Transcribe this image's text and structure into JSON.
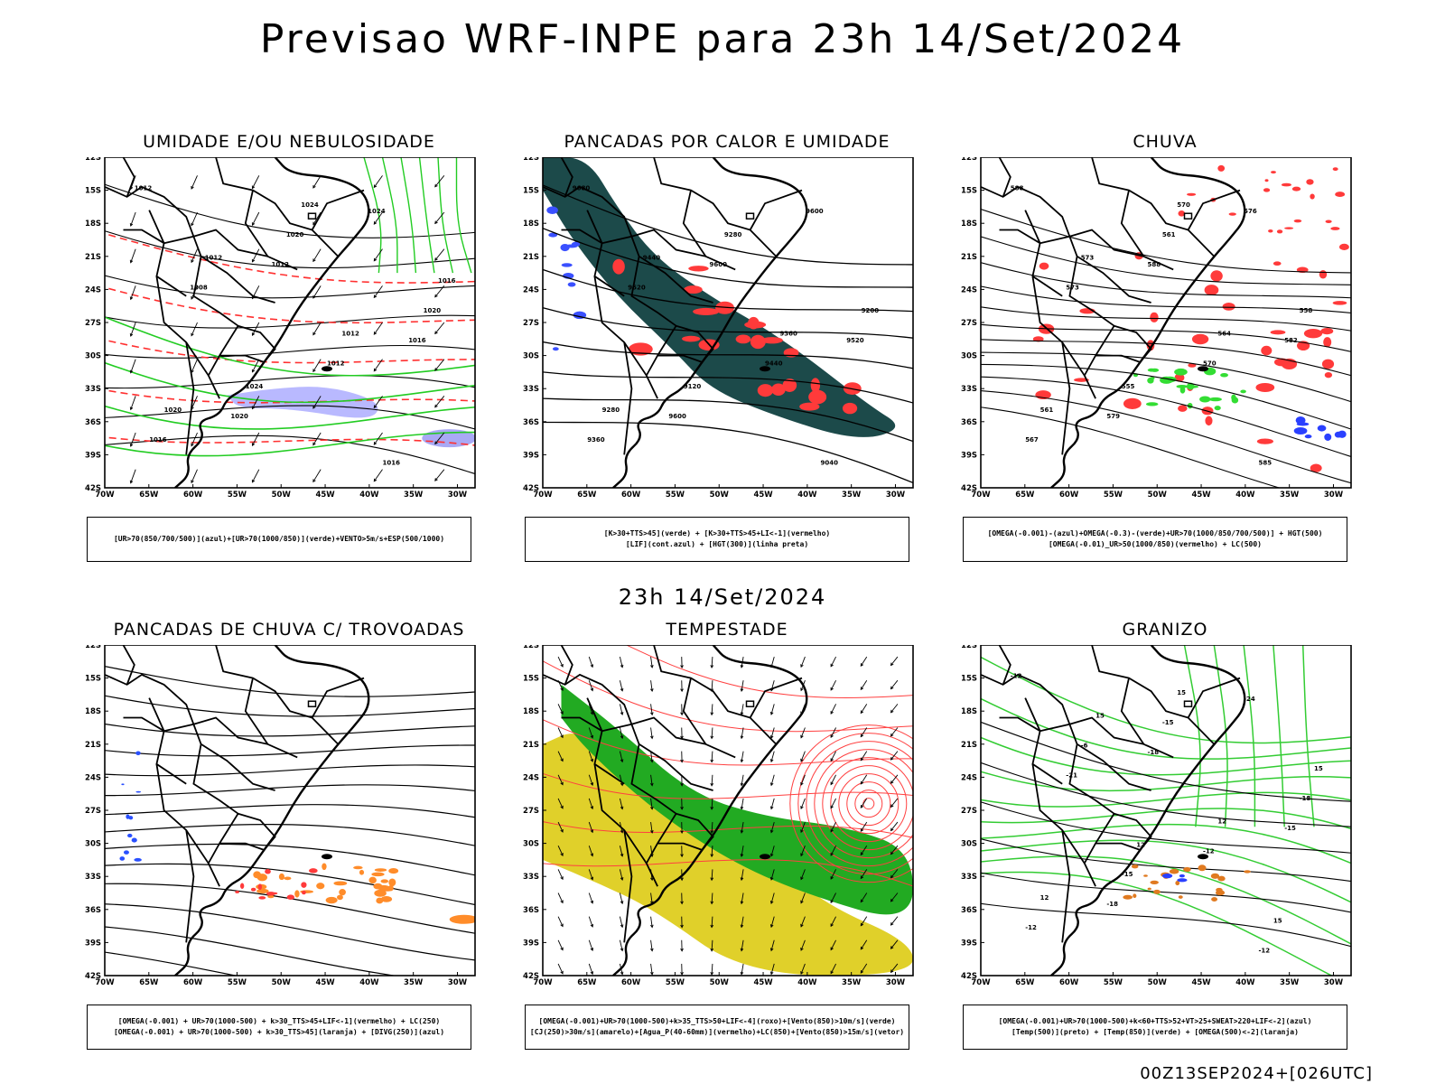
{
  "title": "Previsao WRF-INPE  para 23h 14/Set/2024",
  "mid_title": "23h 14/Set/2024",
  "footer": "00Z13SEP2024+[026UTC]",
  "lat_labels": [
    "12S",
    "15S",
    "18S",
    "21S",
    "24S",
    "27S",
    "30S",
    "33S",
    "36S",
    "39S",
    "42S"
  ],
  "lon_labels": [
    "70W",
    "65W",
    "60W",
    "55W",
    "50W",
    "45W",
    "40W",
    "35W",
    "30W"
  ],
  "panels": [
    {
      "id": "umidade",
      "title": "UMIDADE E/OU NEBULOSIDADE",
      "legend": [
        "[UR>70(850/700/500)](azul)+[UR>70(1000/850)](verde)+VENTO>5m/s+ESP(500/1000)"
      ],
      "contour_labels": [
        "1012",
        "1012",
        "1016",
        "1020",
        "1024",
        "1008",
        "1012",
        "1016",
        "1020",
        "1020",
        "1024",
        "1016",
        "1012",
        "1012",
        "1020",
        "1024",
        "1016"
      ]
    },
    {
      "id": "pancadas-calor",
      "title": "PANCADAS POR CALOR E UMIDADE",
      "legend": [
        "[K>30+TTS>45](verde) + [K>30+TTS>45+LI<-1](vermelho)",
        "[LIF](cont.azul) + [HGT(300)](linha preta)"
      ],
      "contour_labels": [
        "9680",
        "9600",
        "9520",
        "9600",
        "9600",
        "9520",
        "9440",
        "9360",
        "9280",
        "9200",
        "9120",
        "9040",
        "9440",
        "9360",
        "9280"
      ]
    },
    {
      "id": "chuva",
      "title": "CHUVA",
      "legend": [
        "[OMEGA(-0.001)-(azul)+OMEGA(-0.3)-(verde)+UR>70(1000/850/700/500)] + HGT(500)",
        "[OMEGA(-0.01)_UR>50(1000/850)(vermelho) + LC(500)"
      ],
      "contour_labels": [
        "588",
        "588",
        "582",
        "579",
        "576",
        "573",
        "570",
        "567",
        "561",
        "558",
        "555",
        "585",
        "573",
        "564",
        "561",
        "570"
      ]
    },
    {
      "id": "trovoadas",
      "title": "PANCADAS DE CHUVA C/ TROVOADAS",
      "legend": [
        "[OMEGA(-0.001) + UR>70(1000-500) + k>30_TTS>45+LIF<-1](vermelho) + LC(250)",
        "[OMEGA(-0.001) + UR>70(1000-500) + k>30_TTS>45](laranja) + [DIVG(250)](azul)"
      ],
      "contour_labels": []
    },
    {
      "id": "tempestade",
      "title": "TEMPESTADE",
      "legend": [
        "[OMEGA(-0.001)+UR>70(1000-500)+k>35_TTS>50+LIF<-4](roxo)+[Vento(850)>10m/s](verde)",
        "[CJ(250)>30m/s](amarelo)+[Agua_P(40-60mm)](vermelho)+LC(850)+[Vento(850)>15m/s](vetor)"
      ],
      "contour_labels": []
    },
    {
      "id": "granizo",
      "title": "GRANIZO",
      "legend": [
        "[OMEGA(-0.001)+UR>70(1000-500)+k<60+TTS>52+VT>25+SWEAT>220+LIF<-2](azul)",
        "[Temp(500)](preto) + [Temp(850)](verde) + [OMEGA(500)<-2](laranja)"
      ],
      "contour_labels": [
        "-12",
        "-18",
        "-15",
        "-18",
        "-24",
        "-21",
        "-12",
        "-12",
        "-15",
        "-18",
        "-15",
        "-12",
        "-6",
        "12",
        "12",
        "15",
        "15",
        "12",
        "15",
        "15"
      ]
    }
  ]
}
